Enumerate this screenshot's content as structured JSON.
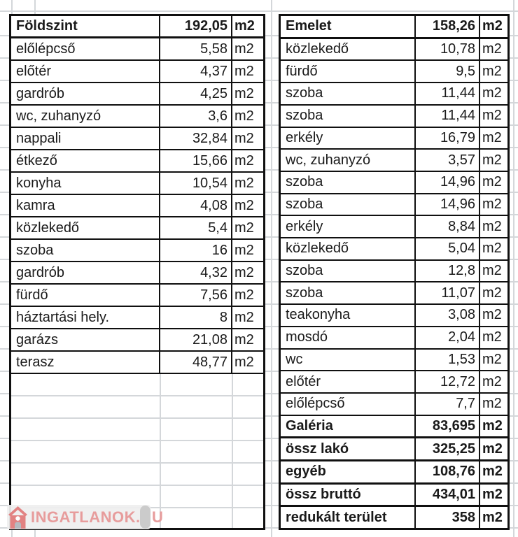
{
  "unit": "m2",
  "tables": {
    "ground": {
      "title": "Földszint",
      "total": "192,05",
      "rows": [
        {
          "label": "előlépcső",
          "value": "5,58"
        },
        {
          "label": "előtér",
          "value": "4,37"
        },
        {
          "label": "gardrób",
          "value": "4,25"
        },
        {
          "label": "wc, zuhanyzó",
          "value": "3,6"
        },
        {
          "label": "nappali",
          "value": "32,84"
        },
        {
          "label": "étkező",
          "value": "15,66"
        },
        {
          "label": "konyha",
          "value": "10,54"
        },
        {
          "label": "kamra",
          "value": "4,08"
        },
        {
          "label": "közlekedő",
          "value": "5,4"
        },
        {
          "label": "szoba",
          "value": "16"
        },
        {
          "label": "gardrób",
          "value": "4,32"
        },
        {
          "label": "fürdő",
          "value": "7,56"
        },
        {
          "label": "háztartási hely.",
          "value": "8"
        },
        {
          "label": "garázs",
          "value": "21,08"
        },
        {
          "label": "terasz",
          "value": "48,77"
        }
      ]
    },
    "upper": {
      "title": "Emelet",
      "total": "158,26",
      "rows": [
        {
          "label": "közlekedő",
          "value": "10,78"
        },
        {
          "label": "fürdő",
          "value": "9,5"
        },
        {
          "label": "szoba",
          "value": "11,44"
        },
        {
          "label": "szoba",
          "value": "11,44"
        },
        {
          "label": "erkély",
          "value": "16,79"
        },
        {
          "label": "wc, zuhanyzó",
          "value": "3,57"
        },
        {
          "label": "szoba",
          "value": "14,96"
        },
        {
          "label": "szoba",
          "value": "14,96"
        },
        {
          "label": "erkély",
          "value": "8,84"
        },
        {
          "label": "közlekedő",
          "value": "5,04"
        },
        {
          "label": "szoba",
          "value": "12,8"
        },
        {
          "label": "szoba",
          "value": "11,07"
        },
        {
          "label": "teakonyha",
          "value": "3,08"
        },
        {
          "label": "mosdó",
          "value": "2,04"
        },
        {
          "label": "wc",
          "value": "1,53"
        },
        {
          "label": "előtér",
          "value": "12,72"
        },
        {
          "label": "előlépcső",
          "value": "7,7"
        }
      ],
      "summary": [
        {
          "label": "Galéria",
          "value": "83,695"
        },
        {
          "label": "össz lakó",
          "value": "325,25"
        },
        {
          "label": "egyéb",
          "value": "108,76"
        },
        {
          "label": "össz bruttó",
          "value": "434,01"
        },
        {
          "label": "redukált terület",
          "value": "358"
        }
      ]
    }
  },
  "watermark": {
    "text": "INGATLANOK.HU",
    "icon": "house-icon"
  },
  "colors": {
    "table_border": "#101010",
    "gridline": "#d4d7da",
    "text": "#1a1a1a",
    "watermark_text": "#e79c9c",
    "watermark_icon_red": "#e28282",
    "watermark_door_gray": "#b6bac0",
    "watermark_capsule_gray": "#cbcbcb"
  }
}
